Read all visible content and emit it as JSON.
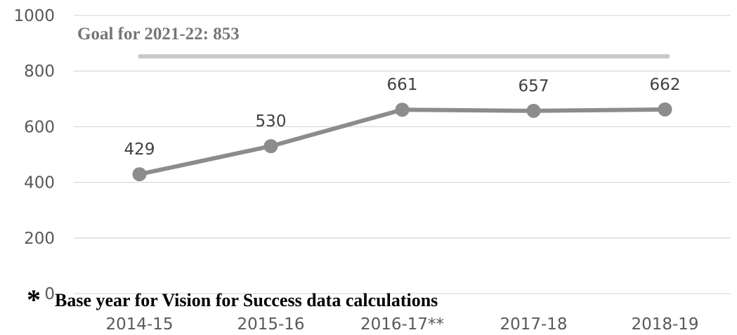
{
  "chart_data": {
    "type": "line",
    "categories": [
      "2014-15",
      "2015-16",
      "2016-17**",
      "2017-18",
      "2018-19"
    ],
    "series": [
      {
        "values": [
          429,
          530,
          661,
          657,
          662
        ],
        "color": "#8c8c8c"
      }
    ],
    "data_labels": [
      "429",
      "530",
      "661",
      "657",
      "662"
    ],
    "yticks": [
      "0",
      "200",
      "400",
      "600",
      "800",
      "1000"
    ],
    "ylim": [
      0,
      1000
    ],
    "grid": true,
    "goal": {
      "value": 853,
      "label": "Goal for 2021-22: 853",
      "color": "#c8c8c8"
    },
    "footnote": {
      "marker": "*",
      "text": "Base year for Vision for Success data calculations"
    },
    "colors": {
      "gridline": "#d9d9d9",
      "axis_text": "#595959",
      "label_text": "#404040"
    }
  }
}
